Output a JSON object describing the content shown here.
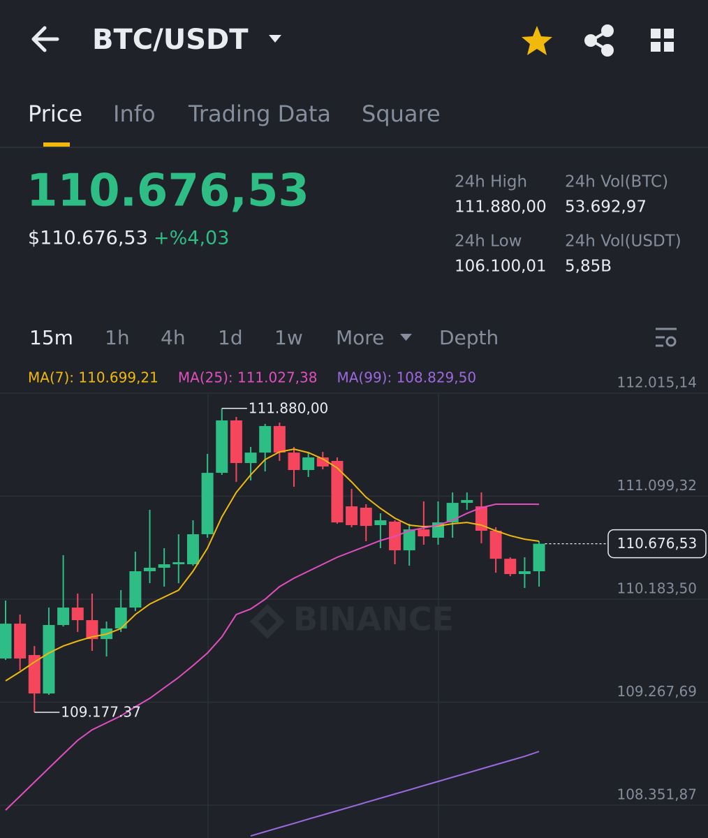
{
  "header": {
    "pair": "BTC/USDT"
  },
  "tabs": [
    "Price",
    "Info",
    "Trading Data",
    "Square"
  ],
  "ticker": {
    "last_price": "110.676,53",
    "usd_price": "$110.676,53",
    "change": "+%4,03",
    "stats": [
      {
        "label": "24h High",
        "value": "111.880,00"
      },
      {
        "label": "24h Vol(BTC)",
        "value": "53.692,97"
      },
      {
        "label": "24h Low",
        "value": "106.100,01"
      },
      {
        "label": "24h Vol(USDT)",
        "value": "5,85B"
      }
    ]
  },
  "intervals": [
    "15m",
    "1h",
    "4h",
    "1d",
    "1w",
    "More",
    "Depth"
  ],
  "chart_data": {
    "type": "candlestick",
    "watermark": "BINANCE",
    "up_color": "#2ebd85",
    "down_color": "#f6465d",
    "categories": [
      null,
      null,
      null,
      null,
      null,
      null,
      null,
      null,
      null,
      null,
      null,
      null,
      null,
      null,
      null,
      null,
      null,
      null,
      null,
      null,
      null,
      null,
      null,
      null,
      null,
      null,
      null,
      null,
      null,
      null,
      null,
      null,
      null,
      null,
      null,
      null,
      null,
      null
    ],
    "candles": [
      {
        "open": 109656,
        "high": 110171,
        "low": 109643,
        "close": 109966
      },
      {
        "open": 109966,
        "high": 110047,
        "low": 109550,
        "close": 109656
      },
      {
        "open": 109687,
        "high": 109767,
        "low": 109177.37,
        "close": 109345
      },
      {
        "open": 109345,
        "high": 110109,
        "low": 109333,
        "close": 109954
      },
      {
        "open": 109954,
        "high": 110575,
        "low": 109941,
        "close": 110109
      },
      {
        "open": 110109,
        "high": 110233,
        "low": 109892,
        "close": 109997
      },
      {
        "open": 109997,
        "high": 110233,
        "low": 109724,
        "close": 109829
      },
      {
        "open": 109829,
        "high": 109985,
        "low": 109674,
        "close": 109923
      },
      {
        "open": 109923,
        "high": 110264,
        "low": 109892,
        "close": 110109
      },
      {
        "open": 110109,
        "high": 110606,
        "low": 110078,
        "close": 110432
      },
      {
        "open": 110432,
        "high": 110978,
        "low": 110326,
        "close": 110463
      },
      {
        "open": 110463,
        "high": 110637,
        "low": 110295,
        "close": 110494
      },
      {
        "open": 110494,
        "high": 110761,
        "low": 110326,
        "close": 110512
      },
      {
        "open": 110494,
        "high": 110885,
        "low": 110481,
        "close": 110761
      },
      {
        "open": 110761,
        "high": 111475,
        "low": 110730,
        "close": 111307
      },
      {
        "open": 111307,
        "high": 111880,
        "low": 111289,
        "close": 111773
      },
      {
        "open": 111773,
        "high": 111804,
        "low": 111226,
        "close": 111394
      },
      {
        "open": 111394,
        "high": 111537,
        "low": 111239,
        "close": 111487
      },
      {
        "open": 111487,
        "high": 111742,
        "low": 111320,
        "close": 111723
      },
      {
        "open": 111723,
        "high": 111754,
        "low": 111413,
        "close": 111487
      },
      {
        "open": 111487,
        "high": 111537,
        "low": 111183,
        "close": 111332
      },
      {
        "open": 111332,
        "high": 111493,
        "low": 111270,
        "close": 111444
      },
      {
        "open": 111444,
        "high": 111493,
        "low": 111338,
        "close": 111363
      },
      {
        "open": 111413,
        "high": 111444,
        "low": 110854,
        "close": 110866
      },
      {
        "open": 111009,
        "high": 111164,
        "low": 110823,
        "close": 110842
      },
      {
        "open": 110997,
        "high": 111028,
        "low": 110699,
        "close": 110835
      },
      {
        "open": 110842,
        "high": 110947,
        "low": 110637,
        "close": 110885
      },
      {
        "open": 110873,
        "high": 110885,
        "low": 110494,
        "close": 110618
      },
      {
        "open": 110618,
        "high": 110854,
        "low": 110481,
        "close": 110804
      },
      {
        "open": 110804,
        "high": 111053,
        "low": 110668,
        "close": 110742
      },
      {
        "open": 110730,
        "high": 111053,
        "low": 110668,
        "close": 110866
      },
      {
        "open": 110866,
        "high": 111133,
        "low": 110730,
        "close": 111040
      },
      {
        "open": 111040,
        "high": 111133,
        "low": 110978,
        "close": 111065
      },
      {
        "open": 111009,
        "high": 111133,
        "low": 110680,
        "close": 110792
      },
      {
        "open": 110792,
        "high": 110823,
        "low": 110419,
        "close": 110543
      },
      {
        "open": 110543,
        "high": 110556,
        "low": 110388,
        "close": 110407
      },
      {
        "open": 110407,
        "high": 110556,
        "low": 110283,
        "close": 110432
      },
      {
        "open": 110432,
        "high": 110699,
        "low": 110295,
        "close": 110676.53
      }
    ],
    "series": [
      {
        "name": "MA(7): 110.699,21",
        "color": "#f0b90b",
        "values": [
          109457,
          109538,
          109625,
          109705,
          109767,
          109811,
          109848,
          109873,
          109923,
          110047,
          110140,
          110202,
          110264,
          110432,
          110637,
          110916,
          111133,
          111289,
          111425,
          111493,
          111518,
          111487,
          111431,
          111351,
          111226,
          111090,
          110991,
          110904,
          110842,
          110829,
          110835,
          110854,
          110866,
          110842,
          110792,
          110748,
          110717,
          110699.21
        ]
      },
      {
        "name": "MA(25): 111.027,38",
        "color": "#e04fbf",
        "values": [
          108308,
          108432,
          108557,
          108681,
          108805,
          108929,
          109022,
          109084,
          109146,
          109227,
          109302,
          109395,
          109488,
          109593,
          109705,
          109848,
          110047,
          110096,
          110183,
          110295,
          110370,
          110432,
          110494,
          110556,
          110606,
          110655,
          110705,
          110742,
          110792,
          110817,
          110842,
          110885,
          110947,
          110997,
          111028,
          111028,
          111028,
          111027.38
        ]
      },
      {
        "name": "MA(99): 108.829,50",
        "color": "#9c6ade",
        "values": [
          null,
          null,
          null,
          null,
          null,
          null,
          null,
          null,
          null,
          null,
          null,
          null,
          null,
          null,
          null,
          null,
          null,
          108078,
          108116,
          108153,
          108190,
          108228,
          108265,
          108302,
          108339,
          108377,
          108414,
          108451,
          108488,
          108526,
          108563,
          108600,
          108637,
          108675,
          108712,
          108749,
          108786,
          108829.5
        ]
      }
    ],
    "annotations": [
      {
        "label": "111.880,00",
        "value": 111880.0
      },
      {
        "label": "109.177.37",
        "value": 109177.37
      }
    ],
    "last_price": {
      "label": "110.676,53",
      "value": 110676.53
    },
    "ylim": [
      108060,
      112034
    ],
    "yticks": [
      {
        "value": 112015.14,
        "label": "112.015,14"
      },
      {
        "value": 111099.32,
        "label": "111.099,32"
      },
      {
        "value": 110183.5,
        "label": "110.183,50"
      },
      {
        "value": 109267.69,
        "label": "109.267,69"
      },
      {
        "value": 108351.87,
        "label": "108.351,87"
      }
    ],
    "grid": true
  }
}
